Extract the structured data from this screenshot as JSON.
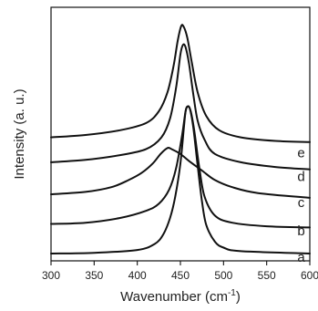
{
  "chart_data": {
    "type": "line",
    "xlabel": "Wavenumber (cm",
    "xlabel_sup": "-1",
    "xlabel_close": ")",
    "ylabel": "Intensity (a. u.)",
    "xlim": [
      300,
      600
    ],
    "xticks": [
      300,
      350,
      400,
      450,
      500,
      550,
      600
    ],
    "y_ticks_shown": false,
    "grid": false,
    "legend": "none",
    "series": [
      {
        "label": "a",
        "baseline": 0.03,
        "label_x": 590,
        "label_y": 0.02,
        "points": [
          [
            300,
            0.0
          ],
          [
            350,
            0.003
          ],
          [
            400,
            0.015
          ],
          [
            420,
            0.04
          ],
          [
            430,
            0.08
          ],
          [
            438,
            0.15
          ],
          [
            444,
            0.24
          ],
          [
            450,
            0.38
          ],
          [
            454,
            0.53
          ],
          [
            456,
            0.6
          ],
          [
            458,
            0.62
          ],
          [
            461,
            0.61
          ],
          [
            465,
            0.53
          ],
          [
            470,
            0.37
          ],
          [
            475,
            0.22
          ],
          [
            480,
            0.12
          ],
          [
            490,
            0.05
          ],
          [
            500,
            0.025
          ],
          [
            520,
            0.01
          ],
          [
            600,
            0.0
          ]
        ]
      },
      {
        "label": "b",
        "baseline": 0.15,
        "label_x": 590,
        "label_y": 0.13,
        "points": [
          [
            300,
            0.125
          ],
          [
            340,
            0.13
          ],
          [
            380,
            0.15
          ],
          [
            410,
            0.18
          ],
          [
            425,
            0.21
          ],
          [
            437,
            0.27
          ],
          [
            445,
            0.36
          ],
          [
            452,
            0.5
          ],
          [
            456,
            0.6
          ],
          [
            459,
            0.62
          ],
          [
            462,
            0.6
          ],
          [
            466,
            0.52
          ],
          [
            472,
            0.36
          ],
          [
            478,
            0.24
          ],
          [
            490,
            0.16
          ],
          [
            510,
            0.13
          ],
          [
            550,
            0.115
          ],
          [
            600,
            0.11
          ]
        ]
      },
      {
        "label": "c",
        "baseline": 0.26,
        "label_x": 590,
        "label_y": 0.25,
        "points": [
          [
            300,
            0.25
          ],
          [
            340,
            0.26
          ],
          [
            370,
            0.28
          ],
          [
            390,
            0.31
          ],
          [
            405,
            0.34
          ],
          [
            418,
            0.38
          ],
          [
            427,
            0.42
          ],
          [
            435,
            0.445
          ],
          [
            440,
            0.44
          ],
          [
            450,
            0.42
          ],
          [
            460,
            0.39
          ],
          [
            475,
            0.35
          ],
          [
            490,
            0.31
          ],
          [
            510,
            0.28
          ],
          [
            540,
            0.255
          ],
          [
            600,
            0.235
          ]
        ]
      },
      {
        "label": "d",
        "baseline": 0.38,
        "label_x": 590,
        "label_y": 0.36,
        "points": [
          [
            300,
            0.385
          ],
          [
            340,
            0.395
          ],
          [
            380,
            0.415
          ],
          [
            410,
            0.44
          ],
          [
            428,
            0.49
          ],
          [
            438,
            0.57
          ],
          [
            445,
            0.7
          ],
          [
            450,
            0.84
          ],
          [
            453,
            0.88
          ],
          [
            456,
            0.87
          ],
          [
            460,
            0.8
          ],
          [
            465,
            0.67
          ],
          [
            470,
            0.56
          ],
          [
            478,
            0.48
          ],
          [
            490,
            0.42
          ],
          [
            520,
            0.385
          ],
          [
            560,
            0.365
          ],
          [
            600,
            0.355
          ]
        ]
      },
      {
        "label": "e",
        "baseline": 0.47,
        "label_x": 590,
        "label_y": 0.46,
        "points": [
          [
            300,
            0.49
          ],
          [
            340,
            0.5
          ],
          [
            380,
            0.52
          ],
          [
            410,
            0.55
          ],
          [
            425,
            0.6
          ],
          [
            435,
            0.68
          ],
          [
            442,
            0.79
          ],
          [
            447,
            0.9
          ],
          [
            451,
            0.96
          ],
          [
            454,
            0.955
          ],
          [
            458,
            0.91
          ],
          [
            463,
            0.81
          ],
          [
            470,
            0.68
          ],
          [
            480,
            0.58
          ],
          [
            495,
            0.52
          ],
          [
            520,
            0.49
          ],
          [
            560,
            0.475
          ],
          [
            600,
            0.47
          ]
        ]
      }
    ]
  }
}
